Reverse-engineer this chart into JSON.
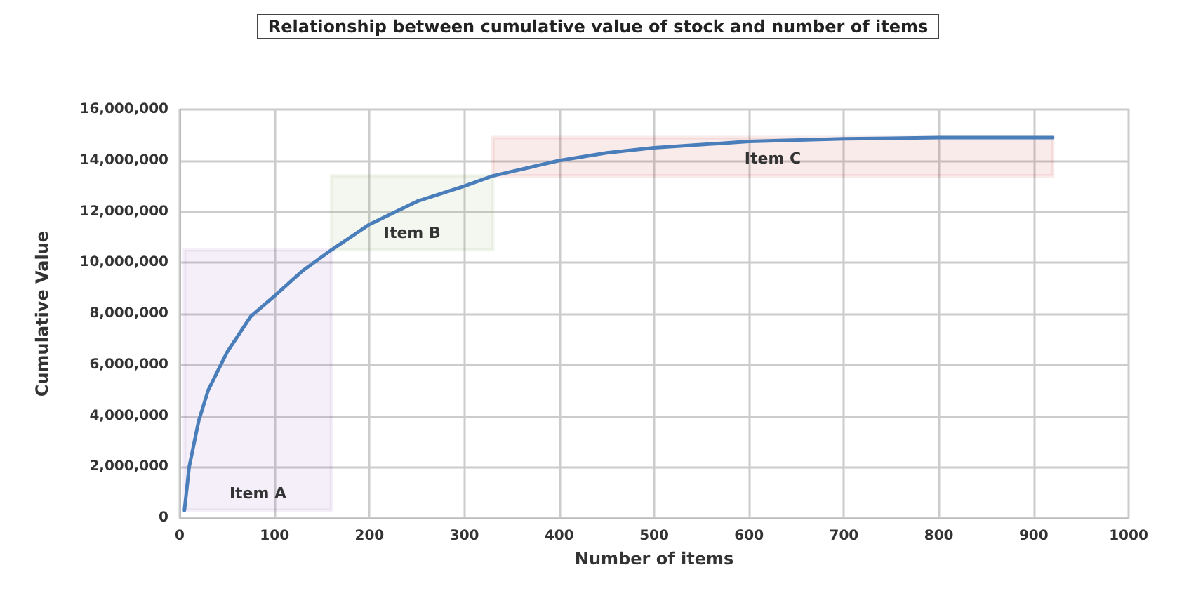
{
  "chart_data": {
    "type": "line",
    "title": "Relationship between cumulative value of stock and number of items",
    "xlabel": "Number of items",
    "ylabel": "Cumulative Value",
    "xlim": [
      0,
      1000
    ],
    "xticks": [
      0,
      100,
      200,
      300,
      400,
      500,
      600,
      700,
      800,
      900,
      1000
    ],
    "ylim": [
      0,
      16000000
    ],
    "yticks": [
      {
        "value": 0,
        "label": "0"
      },
      {
        "value": 2000000,
        "label": "2,000,000"
      },
      {
        "value": 4000000,
        "label": "4,000,000"
      },
      {
        "value": 6000000,
        "label": "6,000,000"
      },
      {
        "value": 8000000,
        "label": "8,000,000"
      },
      {
        "value": 10000000,
        "label": "10,000,000"
      },
      {
        "value": 12000000,
        "label": "12,000,000"
      },
      {
        "value": 14000000,
        "label": "14,000,000"
      },
      {
        "value": 16000000,
        "label": "16,000,000"
      }
    ],
    "grid": true,
    "marker": "none",
    "line_style": "solid",
    "series": [
      {
        "color": "#4a7ebb",
        "x": [
          5,
          10,
          20,
          30,
          50,
          75,
          100,
          130,
          160,
          200,
          250,
          300,
          330,
          400,
          450,
          500,
          600,
          700,
          800,
          920
        ],
        "values": [
          300000,
          2000000,
          3800000,
          5000000,
          6500000,
          7900000,
          8700000,
          9700000,
          10500000,
          11500000,
          12400000,
          13000000,
          13400000,
          14000000,
          14300000,
          14500000,
          14750000,
          14850000,
          14900000,
          14900000
        ]
      }
    ],
    "bands": [
      {
        "axis": "x",
        "from": 5,
        "to": 160,
        "label": "Item A",
        "color": "#7030a0"
      },
      {
        "axis": "x",
        "from": 160,
        "to": 330,
        "label": "Item B",
        "color": "#77933c"
      },
      {
        "axis": "x",
        "from": 330,
        "to": 920,
        "label": "Item C",
        "color": "#c00000"
      }
    ]
  }
}
